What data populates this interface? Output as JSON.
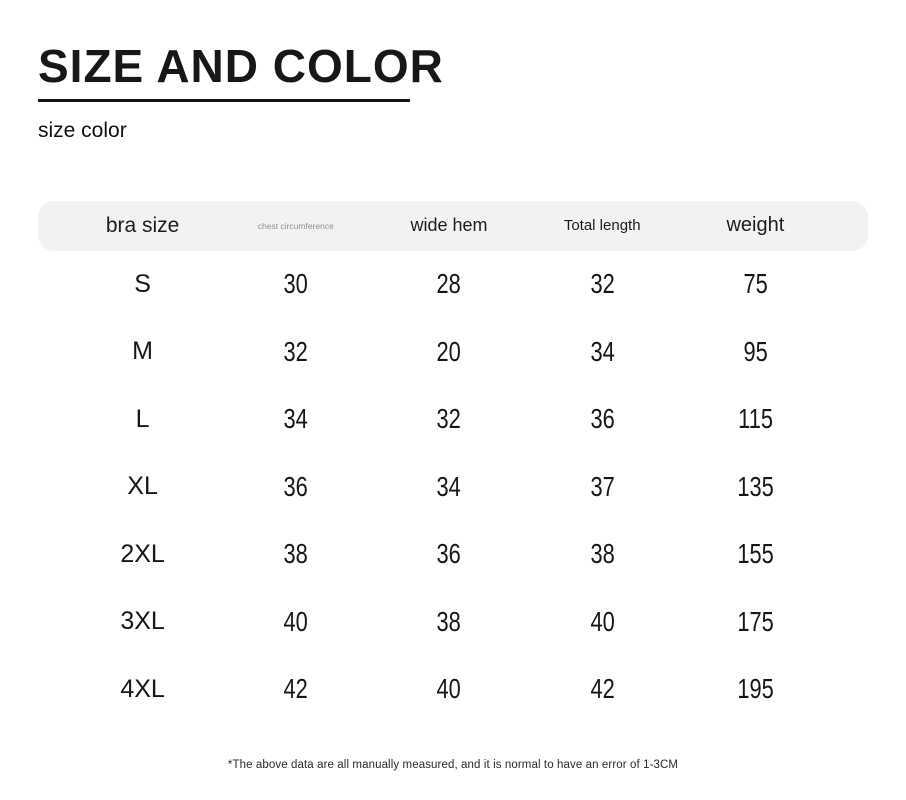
{
  "title": "SIZE AND COLOR",
  "subtitle": "size color",
  "table": {
    "headers": [
      "bra size",
      "chest circumference",
      "wide hem",
      "Total length",
      "weight"
    ],
    "rows": [
      {
        "cells": [
          "S",
          "30",
          "28",
          "32",
          "75"
        ]
      },
      {
        "cells": [
          "M",
          "32",
          "20",
          "34",
          "95"
        ]
      },
      {
        "cells": [
          "L",
          "34",
          "32",
          "36",
          "115"
        ]
      },
      {
        "cells": [
          "XL",
          "36",
          "34",
          "37",
          "135"
        ]
      },
      {
        "cells": [
          "2XL",
          "38",
          "36",
          "38",
          "155"
        ]
      },
      {
        "cells": [
          "3XL",
          "40",
          "38",
          "40",
          "175"
        ]
      },
      {
        "cells": [
          "4XL",
          "42",
          "40",
          "42",
          "195"
        ]
      }
    ]
  },
  "footnote": "*The above data are all manually measured, and it is normal to have an error of 1-3CM",
  "colors": {
    "header_bg": "#f2f2f2",
    "text": "#1a1a1a",
    "muted_header": "#8f8f8f",
    "underline": "#151515"
  },
  "chart_data": {
    "type": "table",
    "title": "SIZE AND COLOR",
    "subtitle": "size color",
    "columns": [
      "bra size",
      "chest circumference",
      "wide hem",
      "Total length",
      "weight"
    ],
    "rows": [
      [
        "S",
        30,
        28,
        32,
        75
      ],
      [
        "M",
        32,
        20,
        34,
        95
      ],
      [
        "L",
        34,
        32,
        36,
        115
      ],
      [
        "XL",
        36,
        34,
        37,
        135
      ],
      [
        "2XL",
        38,
        36,
        38,
        155
      ],
      [
        "3XL",
        40,
        38,
        40,
        175
      ],
      [
        "4XL",
        42,
        40,
        42,
        195
      ]
    ],
    "note": "*The above data are all manually measured, and it is normal to have an error of 1-3CM"
  }
}
